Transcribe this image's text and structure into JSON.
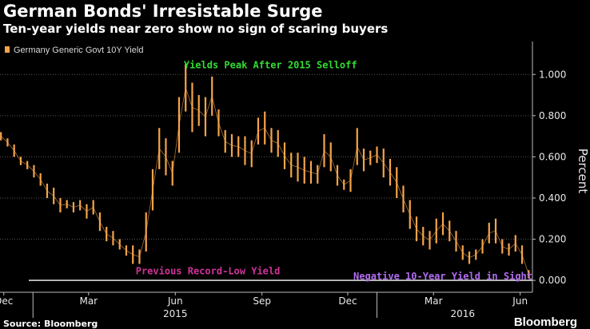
{
  "title": "German Bonds' Irresistable Surge",
  "subtitle": "Ten-year yields near zero show no sign of scaring buyers",
  "source": "Source: Bloomberg",
  "logo": "Bloomberg",
  "colors": {
    "series": "#f5a44a",
    "peak_annotation": "#33dd33",
    "low_annotation": "#d0339a",
    "negative_annotation": "#b06cf0",
    "zero_line": "#ffffff",
    "grid": "#555555"
  },
  "chart_data": {
    "type": "bar",
    "style": "high-low daily range",
    "title": "German Bonds' Irresistable Surge",
    "subtitle": "Ten-year yields near zero show no sign of scaring buyers",
    "series": [
      {
        "name": "Germany Generic Govt 10Y Yield",
        "x": [
          "2014-11-28",
          "2014-12-05",
          "2014-12-12",
          "2014-12-19",
          "2014-12-26",
          "2015-01-02",
          "2015-01-09",
          "2015-01-16",
          "2015-01-23",
          "2015-01-30",
          "2015-02-06",
          "2015-02-13",
          "2015-02-20",
          "2015-02-27",
          "2015-03-06",
          "2015-03-13",
          "2015-03-20",
          "2015-03-27",
          "2015-04-03",
          "2015-04-10",
          "2015-04-17",
          "2015-04-24",
          "2015-05-01",
          "2015-05-08",
          "2015-05-15",
          "2015-05-22",
          "2015-05-29",
          "2015-06-05",
          "2015-06-12",
          "2015-06-19",
          "2015-06-26",
          "2015-07-03",
          "2015-07-10",
          "2015-07-17",
          "2015-07-24",
          "2015-07-31",
          "2015-08-07",
          "2015-08-14",
          "2015-08-21",
          "2015-08-28",
          "2015-09-04",
          "2015-09-11",
          "2015-09-18",
          "2015-09-25",
          "2015-10-02",
          "2015-10-09",
          "2015-10-16",
          "2015-10-23",
          "2015-10-30",
          "2015-11-06",
          "2015-11-13",
          "2015-11-20",
          "2015-11-27",
          "2015-12-04",
          "2015-12-11",
          "2015-12-18",
          "2015-12-25",
          "2016-01-01",
          "2016-01-08",
          "2016-01-15",
          "2016-01-22",
          "2016-01-29",
          "2016-02-05",
          "2016-02-12",
          "2016-02-19",
          "2016-02-26",
          "2016-03-04",
          "2016-03-11",
          "2016-03-18",
          "2016-03-25",
          "2016-04-01",
          "2016-04-08",
          "2016-04-15",
          "2016-04-22",
          "2016-04-29",
          "2016-05-06",
          "2016-05-13",
          "2016-05-20",
          "2016-05-27",
          "2016-06-03",
          "2016-06-10"
        ],
        "high": [
          0.72,
          0.69,
          0.66,
          0.6,
          0.58,
          0.56,
          0.52,
          0.47,
          0.45,
          0.4,
          0.39,
          0.38,
          0.39,
          0.37,
          0.39,
          0.33,
          0.26,
          0.24,
          0.2,
          0.17,
          0.17,
          0.15,
          0.33,
          0.54,
          0.74,
          0.69,
          0.58,
          0.89,
          1.05,
          0.96,
          0.9,
          0.89,
          0.99,
          0.83,
          0.73,
          0.71,
          0.7,
          0.7,
          0.68,
          0.79,
          0.82,
          0.74,
          0.73,
          0.67,
          0.62,
          0.62,
          0.6,
          0.58,
          0.56,
          0.71,
          0.67,
          0.56,
          0.49,
          0.54,
          0.74,
          0.64,
          0.63,
          0.65,
          0.64,
          0.59,
          0.55,
          0.46,
          0.39,
          0.31,
          0.26,
          0.24,
          0.3,
          0.33,
          0.29,
          0.24,
          0.17,
          0.14,
          0.15,
          0.2,
          0.28,
          0.3,
          0.2,
          0.18,
          0.22,
          0.17,
          0.05
        ],
        "low": [
          0.68,
          0.65,
          0.6,
          0.56,
          0.54,
          0.5,
          0.46,
          0.4,
          0.37,
          0.33,
          0.35,
          0.33,
          0.34,
          0.3,
          0.32,
          0.24,
          0.19,
          0.17,
          0.15,
          0.12,
          0.08,
          0.08,
          0.14,
          0.34,
          0.54,
          0.51,
          0.46,
          0.62,
          0.82,
          0.72,
          0.75,
          0.7,
          0.8,
          0.7,
          0.62,
          0.6,
          0.6,
          0.56,
          0.55,
          0.66,
          0.66,
          0.62,
          0.6,
          0.54,
          0.5,
          0.48,
          0.47,
          0.47,
          0.47,
          0.55,
          0.53,
          0.46,
          0.44,
          0.43,
          0.56,
          0.53,
          0.56,
          0.57,
          0.5,
          0.46,
          0.4,
          0.33,
          0.25,
          0.19,
          0.17,
          0.15,
          0.18,
          0.22,
          0.19,
          0.14,
          0.1,
          0.08,
          0.1,
          0.13,
          0.18,
          0.18,
          0.13,
          0.12,
          0.14,
          0.08,
          0.01
        ]
      }
    ],
    "x_ticks": [
      {
        "date": "2014-12-01",
        "label": "Dec"
      },
      {
        "date": "2015-03-01",
        "label": "Mar"
      },
      {
        "date": "2015-06-01",
        "label": "Jun"
      },
      {
        "date": "2015-09-01",
        "label": "Sep"
      },
      {
        "date": "2015-12-01",
        "label": "Dec"
      },
      {
        "date": "2016-03-01",
        "label": "Mar"
      },
      {
        "date": "2016-06-01",
        "label": "Jun"
      }
    ],
    "x_years": [
      {
        "date": "2015-06-01",
        "label": "2015"
      },
      {
        "date": "2016-04-01",
        "label": "2016"
      }
    ],
    "x_dividers": [
      "2015-01-01",
      "2016-01-01"
    ],
    "xlim": [
      "2014-11-27",
      "2016-06-14"
    ],
    "y_ticks": [
      {
        "value": 0.0,
        "label": "0.000"
      },
      {
        "value": 0.2,
        "label": "0.200"
      },
      {
        "value": 0.4,
        "label": "0.400"
      },
      {
        "value": 0.6,
        "label": "0.600"
      },
      {
        "value": 0.8,
        "label": "0.800"
      },
      {
        "value": 1.0,
        "label": "1.000"
      }
    ],
    "ylim": [
      -0.05,
      1.16
    ],
    "ylabel": "Percent",
    "xlabel": "",
    "grid": true,
    "reference_line": {
      "value": 0.0
    },
    "legend_position": "top-left",
    "annotations": [
      {
        "text": "Yields Peak After 2015 Selloff",
        "date": "2015-06-10",
        "value": 1.03,
        "anchor": "start",
        "color_key": "peak_annotation"
      },
      {
        "text": "Previous Record-Low Yield",
        "date": "2015-04-20",
        "value": 0.03,
        "anchor": "start",
        "color_key": "low_annotation"
      },
      {
        "text": "Negative 10-Year Yield in Sight",
        "date": "2016-06-14",
        "value": 0.005,
        "anchor": "end",
        "color_key": "negative_annotation"
      }
    ]
  }
}
